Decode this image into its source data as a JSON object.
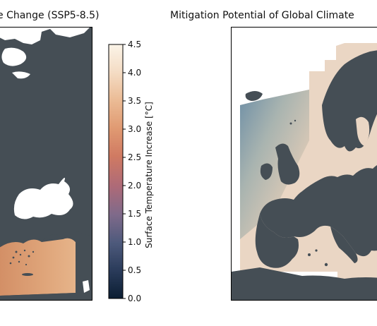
{
  "left_panel": {
    "title": "e Change (SSP5-8.5)"
  },
  "right_panel": {
    "title": "Mitigation Potential of Global Climate"
  },
  "colorbar": {
    "label": "Surface Temperature Increase [°C]",
    "ticks": [
      "0.0",
      "0.5",
      "1.0",
      "1.5",
      "2.0",
      "2.5",
      "3.0",
      "3.5",
      "4.0",
      "4.5"
    ],
    "range": [
      0.0,
      4.5
    ],
    "colors": [
      "#0b1e33",
      "#2a3b5a",
      "#4e5a7c",
      "#7f6a8a",
      "#ad6a78",
      "#d07a62",
      "#e09a72",
      "#ebbb95",
      "#f4dcc4",
      "#fbf4e8"
    ]
  },
  "map_colors": {
    "land": "#454e55",
    "water": "#ffffff",
    "warm": "#d99a6c",
    "pale": "#ecd4c0",
    "cool": "#7f9aaa"
  }
}
